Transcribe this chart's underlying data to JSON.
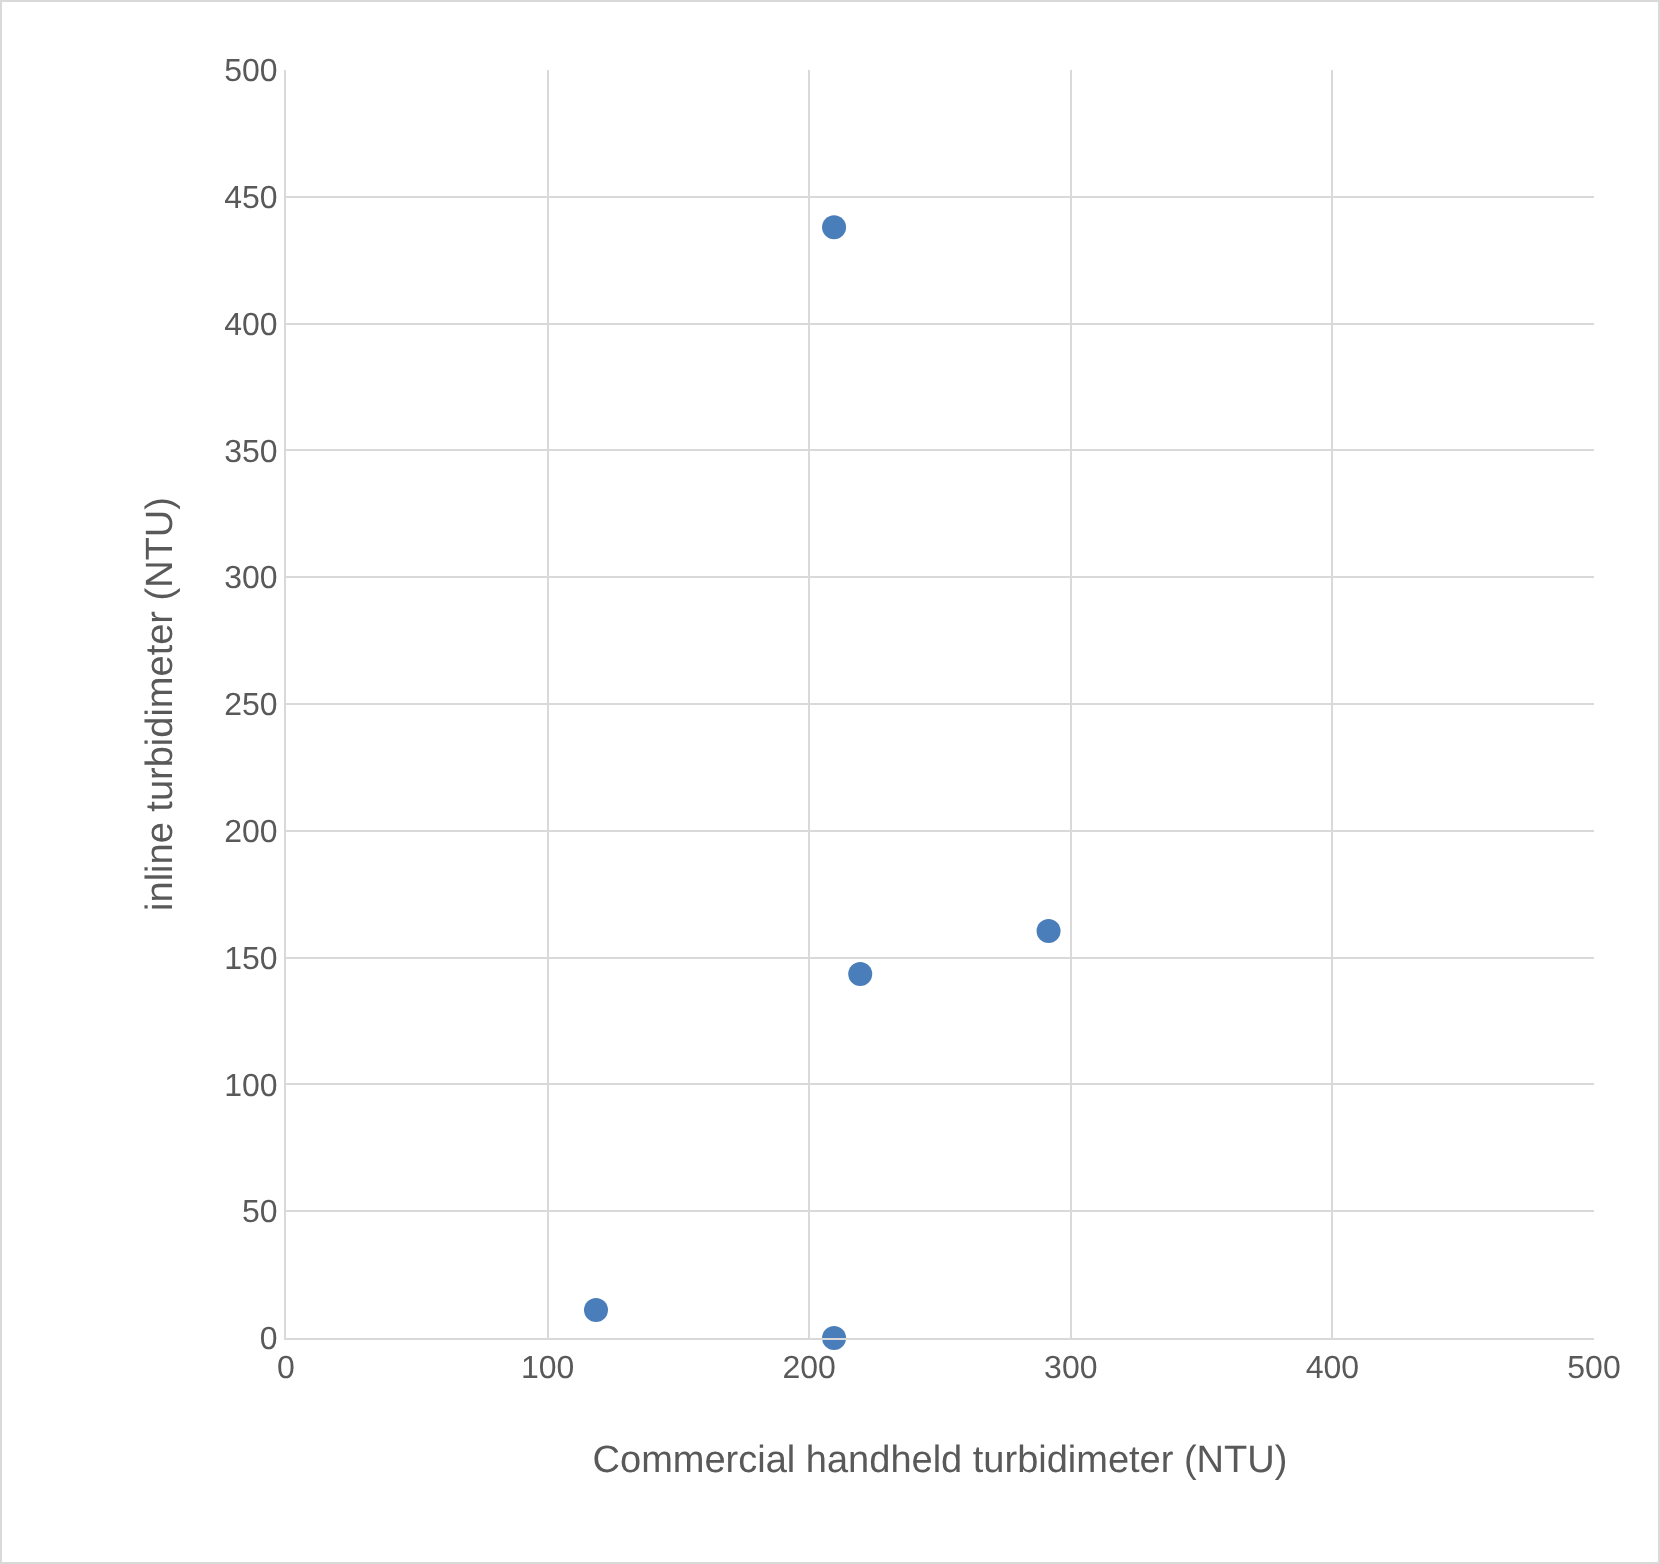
{
  "chart_data": {
    "type": "scatter",
    "xlabel": "Commercial handheld turbidimeter (NTU)",
    "ylabel": "inline turbidimeter (NTU)",
    "x": [
      118.5,
      209.5,
      209.5,
      219.5,
      291.5
    ],
    "series": [
      {
        "color": "#4a7ebb",
        "values": [
          11,
          0,
          438,
          143.5,
          160.5
        ]
      }
    ],
    "xlim": [
      0,
      500
    ],
    "xticks": [
      0,
      100,
      200,
      300,
      400,
      500
    ],
    "ylim": [
      0,
      500
    ],
    "yticks": [
      0,
      50,
      100,
      150,
      200,
      250,
      300,
      350,
      400,
      450,
      500
    ],
    "grid": true,
    "marker": "circle"
  }
}
